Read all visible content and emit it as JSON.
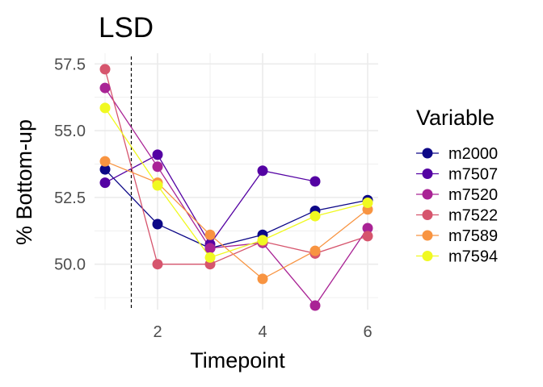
{
  "chart_data": {
    "type": "line",
    "title": "LSD",
    "xlabel": "Timepoint",
    "ylabel": "% Bottom-up",
    "xlim": [
      0.8,
      6.2
    ],
    "ylim": [
      48.3,
      57.9
    ],
    "x_ticks": [
      2,
      4,
      6
    ],
    "x_tick_labels": [
      "2",
      "4",
      "6"
    ],
    "y_ticks": [
      50.0,
      52.5,
      55.0,
      57.5
    ],
    "y_tick_labels": [
      "50.0",
      "52.5",
      "55.0",
      "57.5"
    ],
    "grid": true,
    "reference_line": {
      "x": 1.5,
      "style": "dashed"
    },
    "legend": {
      "title": "Variable",
      "position": "right"
    },
    "series": [
      {
        "name": "m2000",
        "color": "#0d0887",
        "points": [
          [
            1,
            53.55
          ],
          [
            2,
            51.5
          ],
          [
            3,
            50.6
          ],
          [
            4,
            51.1
          ],
          [
            5,
            52.0
          ],
          [
            6,
            52.4
          ]
        ]
      },
      {
        "name": "m7507",
        "color": "#5402a3",
        "points": [
          [
            1,
            53.05
          ],
          [
            2,
            54.1
          ],
          [
            3,
            50.75
          ],
          [
            4,
            53.5
          ],
          [
            5,
            53.1
          ]
        ]
      },
      {
        "name": "m7520",
        "color": "#a92395",
        "points": [
          [
            1,
            56.6
          ],
          [
            2,
            53.65
          ],
          [
            3,
            50.6
          ],
          [
            4,
            50.8
          ],
          [
            5,
            48.45
          ],
          [
            6,
            51.35
          ]
        ]
      },
      {
        "name": "m7522",
        "color": "#d6556d",
        "points": [
          [
            1,
            57.3
          ],
          [
            2,
            50.0
          ],
          [
            3,
            50.0
          ],
          [
            4,
            50.85
          ],
          [
            5,
            50.4
          ],
          [
            6,
            51.05
          ]
        ]
      },
      {
        "name": "m7589",
        "color": "#f89441",
        "points": [
          [
            1,
            53.85
          ],
          [
            2,
            53.05
          ],
          [
            3,
            51.1
          ],
          [
            4,
            49.45
          ],
          [
            5,
            50.5
          ],
          [
            6,
            52.05
          ]
        ]
      },
      {
        "name": "m7594",
        "color": "#f0f921",
        "points": [
          [
            1,
            55.85
          ],
          [
            2,
            52.95
          ],
          [
            3,
            50.25
          ],
          [
            4,
            50.9
          ],
          [
            5,
            51.8
          ],
          [
            6,
            52.3
          ]
        ]
      }
    ]
  }
}
